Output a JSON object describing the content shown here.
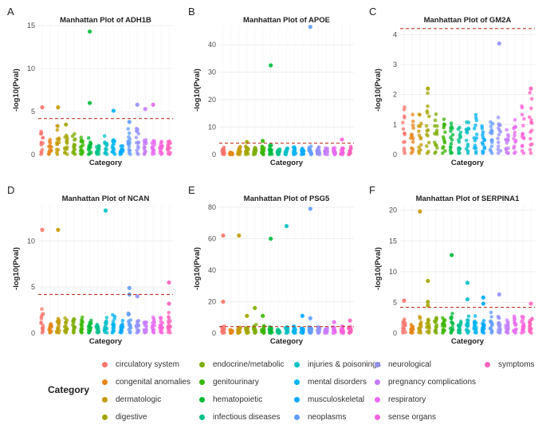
{
  "figure": {
    "legend_title": "Category",
    "threshold_color": "#c0392b",
    "categories": [
      {
        "name": "circulatory system",
        "color": "#f8766d"
      },
      {
        "name": "congenital anomalies",
        "color": "#e7861b"
      },
      {
        "name": "dermatologic",
        "color": "#c49a00"
      },
      {
        "name": "digestive",
        "color": "#a3a500"
      },
      {
        "name": "endocrine/metabolic",
        "color": "#7cae00"
      },
      {
        "name": "genitourinary",
        "color": "#39b600"
      },
      {
        "name": "hematopoietic",
        "color": "#00ba38"
      },
      {
        "name": "infectious diseases",
        "color": "#00c08b"
      },
      {
        "name": "injuries & poisonings",
        "color": "#00bfc4"
      },
      {
        "name": "mental disorders",
        "color": "#00b4f0"
      },
      {
        "name": "musculoskeletal",
        "color": "#00a9ff"
      },
      {
        "name": "neoplasms",
        "color": "#619cff"
      },
      {
        "name": "neurological",
        "color": "#9590ff"
      },
      {
        "name": "pregnancy complications",
        "color": "#c77cff"
      },
      {
        "name": "respiratory",
        "color": "#e76bf3"
      },
      {
        "name": "sense organs",
        "color": "#fa62db"
      },
      {
        "name": "symptoms",
        "color": "#ff62bc"
      }
    ]
  },
  "chart_data": [
    {
      "panel_label": "A",
      "type": "scatter",
      "title": "Manhattan Plot of ADH1B",
      "xlabel": "Category",
      "ylabel": "-log10(Pval)",
      "ylim": [
        0,
        15
      ],
      "yticks": [
        0,
        5,
        10,
        15
      ],
      "threshold": 4.2,
      "highlights": [
        {
          "cat": 0,
          "value": 5.5
        },
        {
          "cat": 2,
          "value": 5.5
        },
        {
          "cat": 3,
          "value": 3.5
        },
        {
          "cat": 6,
          "value": 14.3
        },
        {
          "cat": 6,
          "value": 6.0
        },
        {
          "cat": 9,
          "value": 5.1
        },
        {
          "cat": 11,
          "value": 3.8
        },
        {
          "cat": 12,
          "value": 5.8
        },
        {
          "cat": 13,
          "value": 5.3
        },
        {
          "cat": 14,
          "value": 5.8
        }
      ],
      "column_max": [
        4.0,
        1.8,
        4.0,
        2.8,
        2.5,
        2.2,
        2.2,
        1.5,
        2.2,
        2.5,
        1.2,
        3.2,
        3.8,
        2.0,
        2.0,
        2.0,
        2.2
      ]
    },
    {
      "panel_label": "B",
      "type": "scatter",
      "title": "Manhattan Plot of APOE",
      "xlabel": "Category",
      "ylabel": "-log10(Pval)",
      "ylim": [
        0,
        47
      ],
      "yticks": [
        0,
        10,
        20,
        30,
        40
      ],
      "threshold": 4.2,
      "highlights": [
        {
          "cat": 6,
          "value": 32.5
        },
        {
          "cat": 11,
          "value": 46.5
        },
        {
          "cat": 5,
          "value": 5.0
        },
        {
          "cat": 15,
          "value": 5.5
        },
        {
          "cat": 3,
          "value": 4.6
        }
      ],
      "column_max": [
        3.0,
        1.0,
        3.5,
        4.0,
        3.0,
        3.5,
        4.0,
        2.5,
        3.0,
        3.5,
        3.0,
        4.0,
        3.0,
        3.0,
        3.0,
        3.0,
        3.0
      ]
    },
    {
      "panel_label": "C",
      "type": "scatter",
      "title": "Manhattan Plot of GM2A",
      "xlabel": "Category",
      "ylabel": "-log10(Pval)",
      "ylim": [
        0,
        4.3
      ],
      "yticks": [
        0,
        1,
        2,
        3,
        4
      ],
      "threshold": 4.2,
      "highlights": [
        {
          "cat": 12,
          "value": 3.7
        },
        {
          "cat": 3,
          "value": 2.2
        },
        {
          "cat": 16,
          "value": 2.2
        }
      ],
      "column_max": [
        1.9,
        1.5,
        1.8,
        2.2,
        1.6,
        1.7,
        1.3,
        1.0,
        1.8,
        1.6,
        1.2,
        1.6,
        1.8,
        1.0,
        1.5,
        2.0,
        2.2
      ]
    },
    {
      "panel_label": "D",
      "type": "scatter",
      "title": "Manhattan Plot of NCAN",
      "xlabel": "Category",
      "ylabel": "-log10(Pval)",
      "ylim": [
        0,
        14
      ],
      "yticks": [
        0,
        5,
        10
      ],
      "threshold": 4.2,
      "highlights": [
        {
          "cat": 0,
          "value": 11.2
        },
        {
          "cat": 2,
          "value": 11.2
        },
        {
          "cat": 8,
          "value": 13.3
        },
        {
          "cat": 11,
          "value": 4.9
        },
        {
          "cat": 11,
          "value": 4.2
        },
        {
          "cat": 12,
          "value": 4.0
        },
        {
          "cat": 16,
          "value": 5.5
        },
        {
          "cat": 16,
          "value": 3.2
        }
      ],
      "column_max": [
        2.8,
        1.2,
        2.0,
        2.0,
        2.2,
        2.0,
        1.8,
        1.5,
        2.0,
        2.2,
        1.5,
        2.5,
        2.0,
        2.0,
        2.0,
        2.0,
        2.5
      ]
    },
    {
      "panel_label": "E",
      "type": "scatter",
      "title": "Manhattan Plot of PSG5",
      "xlabel": "Category",
      "ylabel": "-log10(Pval)",
      "ylim": [
        0,
        82
      ],
      "yticks": [
        0,
        20,
        40,
        60,
        80
      ],
      "threshold": 4.2,
      "highlights": [
        {
          "cat": 0,
          "value": 62
        },
        {
          "cat": 2,
          "value": 62
        },
        {
          "cat": 6,
          "value": 60
        },
        {
          "cat": 8,
          "value": 68
        },
        {
          "cat": 11,
          "value": 79
        },
        {
          "cat": 0,
          "value": 20
        },
        {
          "cat": 4,
          "value": 16
        },
        {
          "cat": 3,
          "value": 11
        },
        {
          "cat": 5,
          "value": 11
        },
        {
          "cat": 10,
          "value": 11
        },
        {
          "cat": 11,
          "value": 9.5
        },
        {
          "cat": 14,
          "value": 7
        },
        {
          "cat": 16,
          "value": 8
        }
      ],
      "column_max": [
        5,
        3,
        5,
        5,
        6,
        5,
        5,
        3,
        5,
        5,
        4,
        5,
        5,
        4,
        5,
        5,
        5
      ]
    },
    {
      "panel_label": "F",
      "type": "scatter",
      "title": "Manhattan Plot of SERPINA1",
      "xlabel": "Category",
      "ylabel": "-log10(Pval)",
      "ylim": [
        0,
        21
      ],
      "yticks": [
        0,
        5,
        10,
        15,
        20
      ],
      "threshold": 4.2,
      "highlights": [
        {
          "cat": 2,
          "value": 19.8
        },
        {
          "cat": 6,
          "value": 12.7
        },
        {
          "cat": 8,
          "value": 8.2
        },
        {
          "cat": 3,
          "value": 8.5
        },
        {
          "cat": 12,
          "value": 6.3
        },
        {
          "cat": 0,
          "value": 5.3
        },
        {
          "cat": 10,
          "value": 5.8
        },
        {
          "cat": 3,
          "value": 5.1
        },
        {
          "cat": 16,
          "value": 4.8
        },
        {
          "cat": 8,
          "value": 5.5
        },
        {
          "cat": 10,
          "value": 4.8
        },
        {
          "cat": 3,
          "value": 4.5
        }
      ],
      "column_max": [
        3.0,
        1.5,
        3.0,
        3.5,
        3.0,
        3.0,
        3.5,
        2.0,
        3.0,
        3.0,
        2.5,
        3.5,
        3.0,
        2.5,
        3.0,
        3.0,
        3.0
      ]
    }
  ]
}
